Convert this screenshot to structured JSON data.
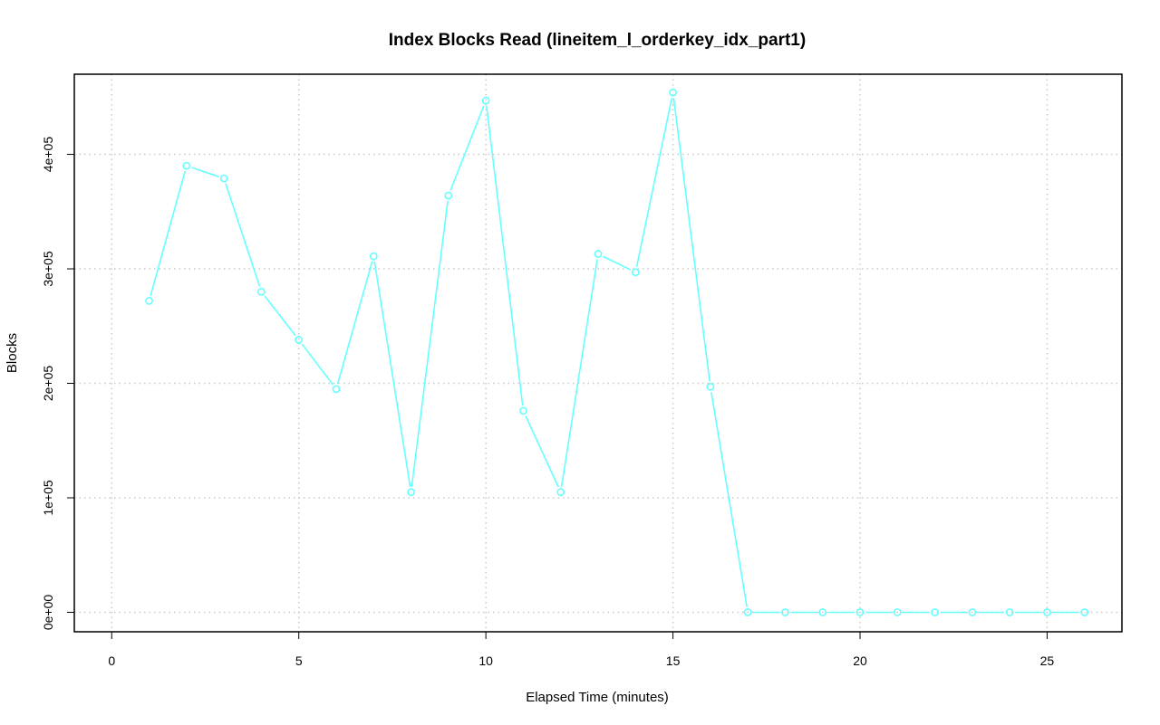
{
  "chart_data": {
    "type": "line",
    "title": "Index Blocks Read (lineitem_l_orderkey_idx_part1)",
    "xlabel": "Elapsed Time (minutes)",
    "ylabel": "Blocks",
    "xlim": [
      -1,
      27
    ],
    "ylim": [
      -17000,
      470000
    ],
    "x_ticks": [
      0,
      5,
      10,
      15,
      20,
      25
    ],
    "x_tick_labels": [
      "0",
      "5",
      "10",
      "15",
      "20",
      "25"
    ],
    "y_ticks": [
      0,
      100000,
      200000,
      300000,
      400000
    ],
    "y_tick_labels": [
      "0e+00",
      "1e+05",
      "2e+05",
      "3e+05",
      "4e+05"
    ],
    "grid": true,
    "series": [
      {
        "color": "#66ffff",
        "marker": "open-circle",
        "x": [
          1,
          2,
          3,
          4,
          5,
          6,
          7,
          8,
          9,
          10,
          11,
          12,
          13,
          14,
          15,
          16,
          17,
          18,
          19,
          20,
          21,
          22,
          23,
          24,
          25,
          26
        ],
        "values": [
          272000,
          390000,
          379000,
          280000,
          238000,
          195000,
          311000,
          105000,
          364000,
          447000,
          176000,
          105000,
          313000,
          297000,
          454000,
          197000,
          0,
          0,
          0,
          0,
          0,
          0,
          0,
          0,
          0,
          0
        ]
      }
    ]
  }
}
